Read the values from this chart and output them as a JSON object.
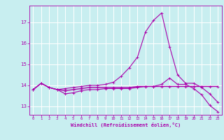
{
  "background_color": "#c8eef0",
  "grid_color": "#ffffff",
  "line_color": "#aa00aa",
  "xlabel": "Windchill (Refroidissement éolien,°C)",
  "ylabel_ticks": [
    13,
    14,
    15,
    16,
    17
  ],
  "xticks": [
    0,
    1,
    2,
    3,
    4,
    5,
    6,
    7,
    8,
    9,
    10,
    11,
    12,
    13,
    14,
    15,
    16,
    17,
    18,
    19,
    20,
    21,
    22,
    23
  ],
  "xlim": [
    -0.5,
    23.5
  ],
  "ylim": [
    12.6,
    17.8
  ],
  "curve1_x": [
    0,
    1,
    2,
    3,
    4,
    5,
    6,
    7,
    8,
    9,
    10,
    11,
    12,
    13,
    14,
    15,
    16,
    17,
    18,
    19,
    20,
    21,
    22,
    23
  ],
  "curve1_y": [
    13.8,
    14.1,
    13.9,
    13.8,
    13.85,
    13.9,
    13.95,
    14.0,
    14.0,
    14.05,
    14.15,
    14.45,
    14.85,
    15.35,
    16.55,
    17.1,
    17.45,
    15.85,
    14.5,
    14.1,
    14.1,
    13.9,
    13.6,
    13.2
  ],
  "curve2_x": [
    0,
    1,
    2,
    3,
    4,
    5,
    6,
    7,
    8,
    9,
    10,
    11,
    12,
    13,
    14,
    15,
    16,
    17,
    18,
    19,
    20,
    21,
    22,
    23
  ],
  "curve2_y": [
    13.8,
    14.1,
    13.9,
    13.8,
    13.6,
    13.65,
    13.75,
    13.8,
    13.8,
    13.85,
    13.85,
    13.85,
    13.85,
    13.9,
    13.95,
    13.95,
    14.05,
    14.35,
    14.05,
    14.05,
    13.85,
    13.55,
    13.05,
    12.75
  ],
  "curve3_x": [
    0,
    1,
    2,
    3,
    4,
    5,
    6,
    7,
    8,
    9,
    10,
    11,
    12,
    13,
    14,
    15,
    16,
    17,
    18,
    19,
    20,
    21,
    22,
    23
  ],
  "curve3_y": [
    13.8,
    14.1,
    13.9,
    13.8,
    13.75,
    13.8,
    13.85,
    13.9,
    13.9,
    13.9,
    13.9,
    13.9,
    13.9,
    13.95,
    13.95,
    13.95,
    13.95,
    13.95,
    13.95,
    13.95,
    13.95,
    13.95,
    13.95,
    13.95
  ]
}
